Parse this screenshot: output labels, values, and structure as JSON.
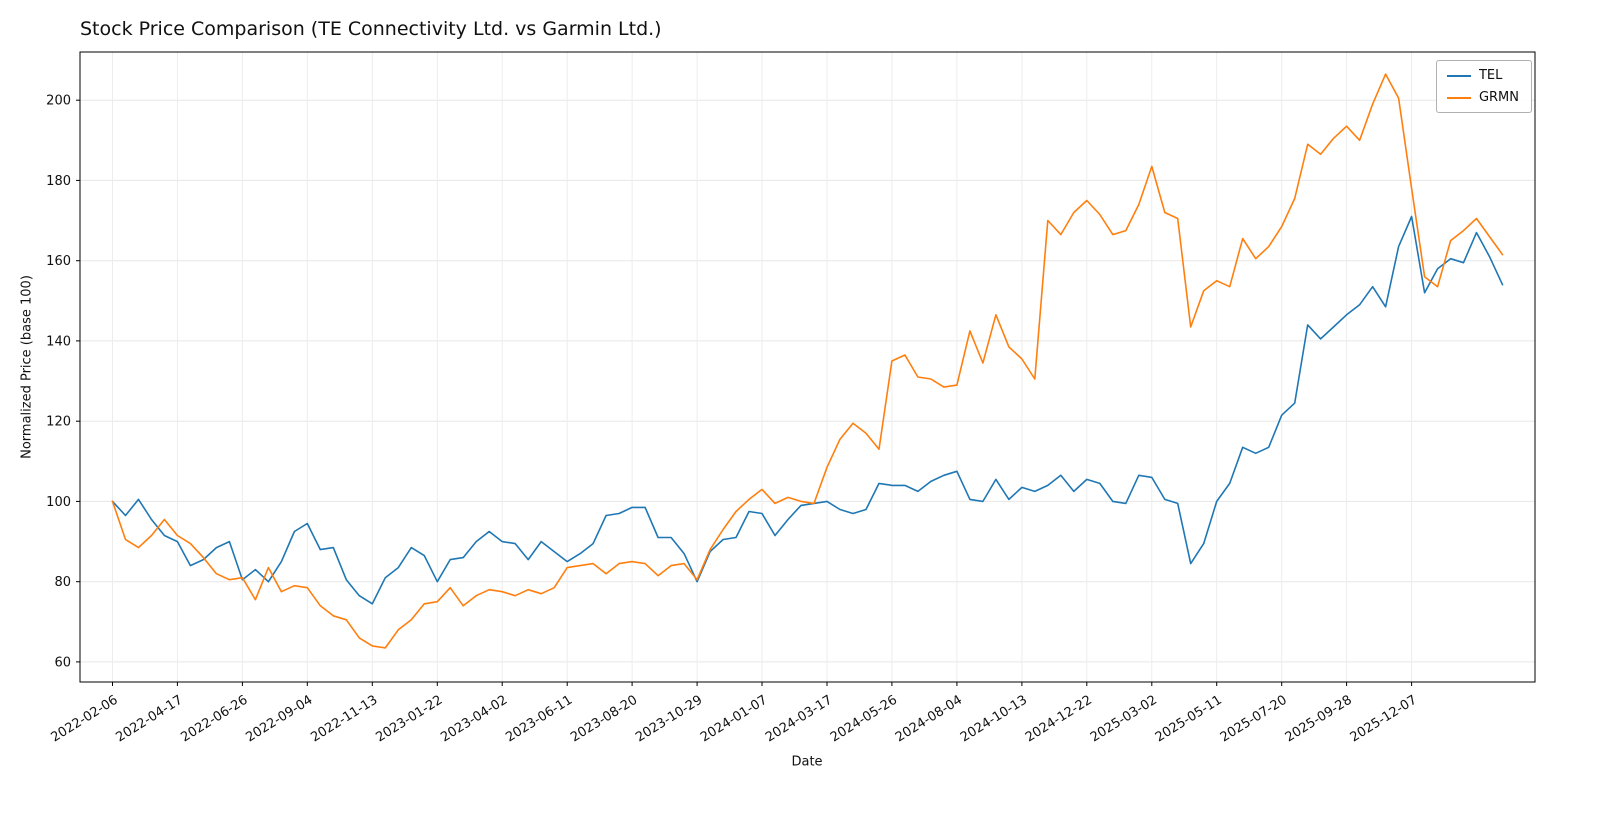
{
  "chart_data": {
    "type": "line",
    "title": "Stock Price Comparison (TE Connectivity Ltd. vs Garmin Ltd.)",
    "xlabel": "Date",
    "ylabel": "Normalized Price (base 100)",
    "grid": true,
    "legend_position": "upper right",
    "xlim": [
      -5,
      219
    ],
    "ylim": [
      55,
      212
    ],
    "y_ticks": [
      60,
      80,
      100,
      120,
      140,
      160,
      180,
      200
    ],
    "x_ticks": {
      "positions": [
        0,
        10,
        20,
        30,
        40,
        50,
        60,
        70,
        80,
        90,
        100,
        110,
        120,
        130,
        140,
        150,
        160,
        170,
        180,
        190,
        200
      ],
      "labels": [
        "2022-02-06",
        "2022-04-17",
        "2022-06-26",
        "2022-09-04",
        "2022-11-13",
        "2023-01-22",
        "2023-04-02",
        "2023-06-11",
        "2023-08-20",
        "2023-10-29",
        "2024-01-07",
        "2024-03-17",
        "2024-05-26",
        "2024-08-04",
        "2024-10-13",
        "2024-12-22",
        "2025-03-02",
        "2025-05-11",
        "2025-07-20",
        "2025-09-28",
        "2025-12-07"
      ]
    },
    "x_unit": "weeks-from-2022-02-06",
    "x": [
      0,
      2,
      4,
      6,
      8,
      10,
      12,
      14,
      16,
      18,
      20,
      22,
      24,
      26,
      28,
      30,
      32,
      34,
      36,
      38,
      40,
      42,
      44,
      46,
      48,
      50,
      52,
      54,
      56,
      58,
      60,
      62,
      64,
      66,
      68,
      70,
      72,
      74,
      76,
      78,
      80,
      82,
      84,
      86,
      88,
      90,
      92,
      94,
      96,
      98,
      100,
      102,
      104,
      106,
      108,
      110,
      112,
      114,
      116,
      118,
      120,
      122,
      124,
      126,
      128,
      130,
      132,
      134,
      136,
      138,
      140,
      142,
      144,
      146,
      148,
      150,
      152,
      154,
      156,
      158,
      160,
      162,
      164,
      166,
      168,
      170,
      172,
      174,
      176,
      178,
      180,
      182,
      184,
      186,
      188,
      190,
      192,
      194,
      196,
      198,
      200,
      202,
      204,
      206,
      208,
      210,
      212,
      214
    ],
    "series": [
      {
        "name": "TEL",
        "color": "#1f77b4",
        "values": [
          100,
          96.5,
          100.5,
          95.5,
          91.5,
          90,
          84,
          85.5,
          88.5,
          90,
          80.5,
          83,
          80,
          85,
          92.5,
          94.5,
          88,
          88.5,
          80.5,
          76.5,
          74.5,
          81,
          83.5,
          88.5,
          86.5,
          80,
          85.5,
          86,
          90,
          92.5,
          90,
          89.5,
          85.5,
          90,
          87.5,
          85,
          87,
          89.5,
          96.5,
          97,
          98.5,
          98.5,
          91,
          91,
          87,
          80,
          87.5,
          90.5,
          91,
          97.5,
          97,
          91.5,
          95.5,
          99,
          99.5,
          100,
          98,
          97,
          98,
          104.5,
          104,
          104,
          102.5,
          105,
          106.5,
          107.5,
          100.5,
          100,
          105.5,
          100.5,
          103.5,
          102.5,
          104,
          106.5,
          102.5,
          105.5,
          104.5,
          100,
          99.5,
          106.5,
          106,
          100.5,
          99.5,
          84.5,
          89.5,
          100,
          104.5,
          113.5,
          112,
          113.5,
          121.5,
          124.5,
          144,
          140.5,
          143.5,
          146.5,
          149,
          153.5,
          148.5,
          163.5,
          171,
          152,
          158,
          160.5,
          159.5,
          167,
          161,
          154
        ]
      },
      {
        "name": "GRMN",
        "color": "#ff7f0e",
        "values": [
          100,
          90.5,
          88.5,
          91.5,
          95.5,
          91.5,
          89.5,
          86,
          82,
          80.5,
          81,
          75.5,
          83.5,
          77.5,
          79,
          78.5,
          74,
          71.5,
          70.5,
          66,
          64,
          63.5,
          68,
          70.5,
          74.5,
          75,
          78.5,
          74,
          76.5,
          78,
          77.5,
          76.5,
          78,
          77,
          78.5,
          83.5,
          84,
          84.5,
          82,
          84.5,
          85,
          84.5,
          81.5,
          84,
          84.5,
          80.5,
          88,
          93,
          97.5,
          100.5,
          103,
          99.5,
          101,
          100,
          99.5,
          108.5,
          115.5,
          119.5,
          117,
          113,
          135,
          136.5,
          131,
          130.5,
          128.5,
          129,
          142.5,
          134.5,
          146.5,
          138.5,
          135.5,
          130.5,
          170,
          166.5,
          172,
          175,
          171.5,
          166.5,
          167.5,
          174,
          183.5,
          172,
          170.5,
          143.5,
          152.5,
          155,
          153.5,
          165.5,
          160.5,
          163.5,
          168.5,
          175.5,
          189,
          186.5,
          190.5,
          193.5,
          190,
          199,
          206.5,
          200.5,
          178,
          156,
          153.5,
          165,
          167.5,
          170.5,
          166,
          161.5
        ]
      }
    ]
  }
}
